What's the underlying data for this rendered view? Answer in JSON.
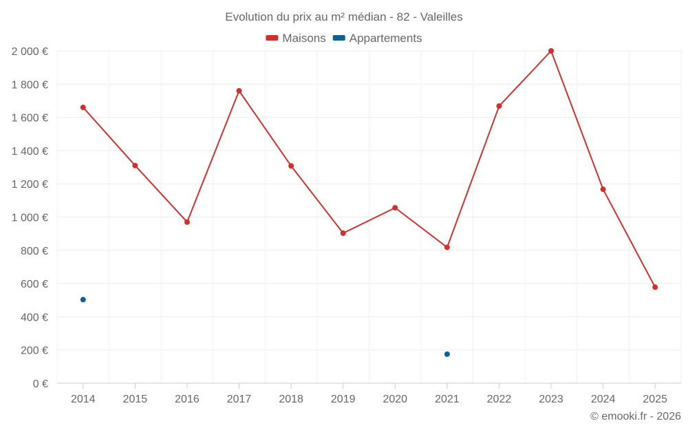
{
  "chart_data": {
    "type": "line",
    "title": "Evolution du prix au m² médian - 82 - Valeilles",
    "categories": [
      "2014",
      "2015",
      "2016",
      "2017",
      "2018",
      "2019",
      "2020",
      "2021",
      "2022",
      "2023",
      "2024",
      "2025"
    ],
    "series": [
      {
        "name": "Maisons",
        "color": "#d32f2f",
        "values": [
          1660,
          1310,
          970,
          1760,
          1308,
          903,
          1056,
          818,
          1668,
          2000,
          1167,
          578
        ]
      },
      {
        "name": "Appartements",
        "color": "#0d6199",
        "values": [
          503,
          null,
          null,
          null,
          null,
          null,
          null,
          175,
          null,
          null,
          null,
          null
        ]
      }
    ],
    "yticks": [
      "0 €",
      "200 €",
      "400 €",
      "600 €",
      "800 €",
      "1 000 €",
      "1 200 €",
      "1 400 €",
      "1 600 €",
      "1 800 €",
      "2 000 €"
    ],
    "ylim": [
      0,
      2000
    ],
    "xlabel": "",
    "ylabel": "",
    "grid": true,
    "legend_position": "top-center"
  },
  "footer": {
    "credit": "© emooki.fr - 2026"
  }
}
